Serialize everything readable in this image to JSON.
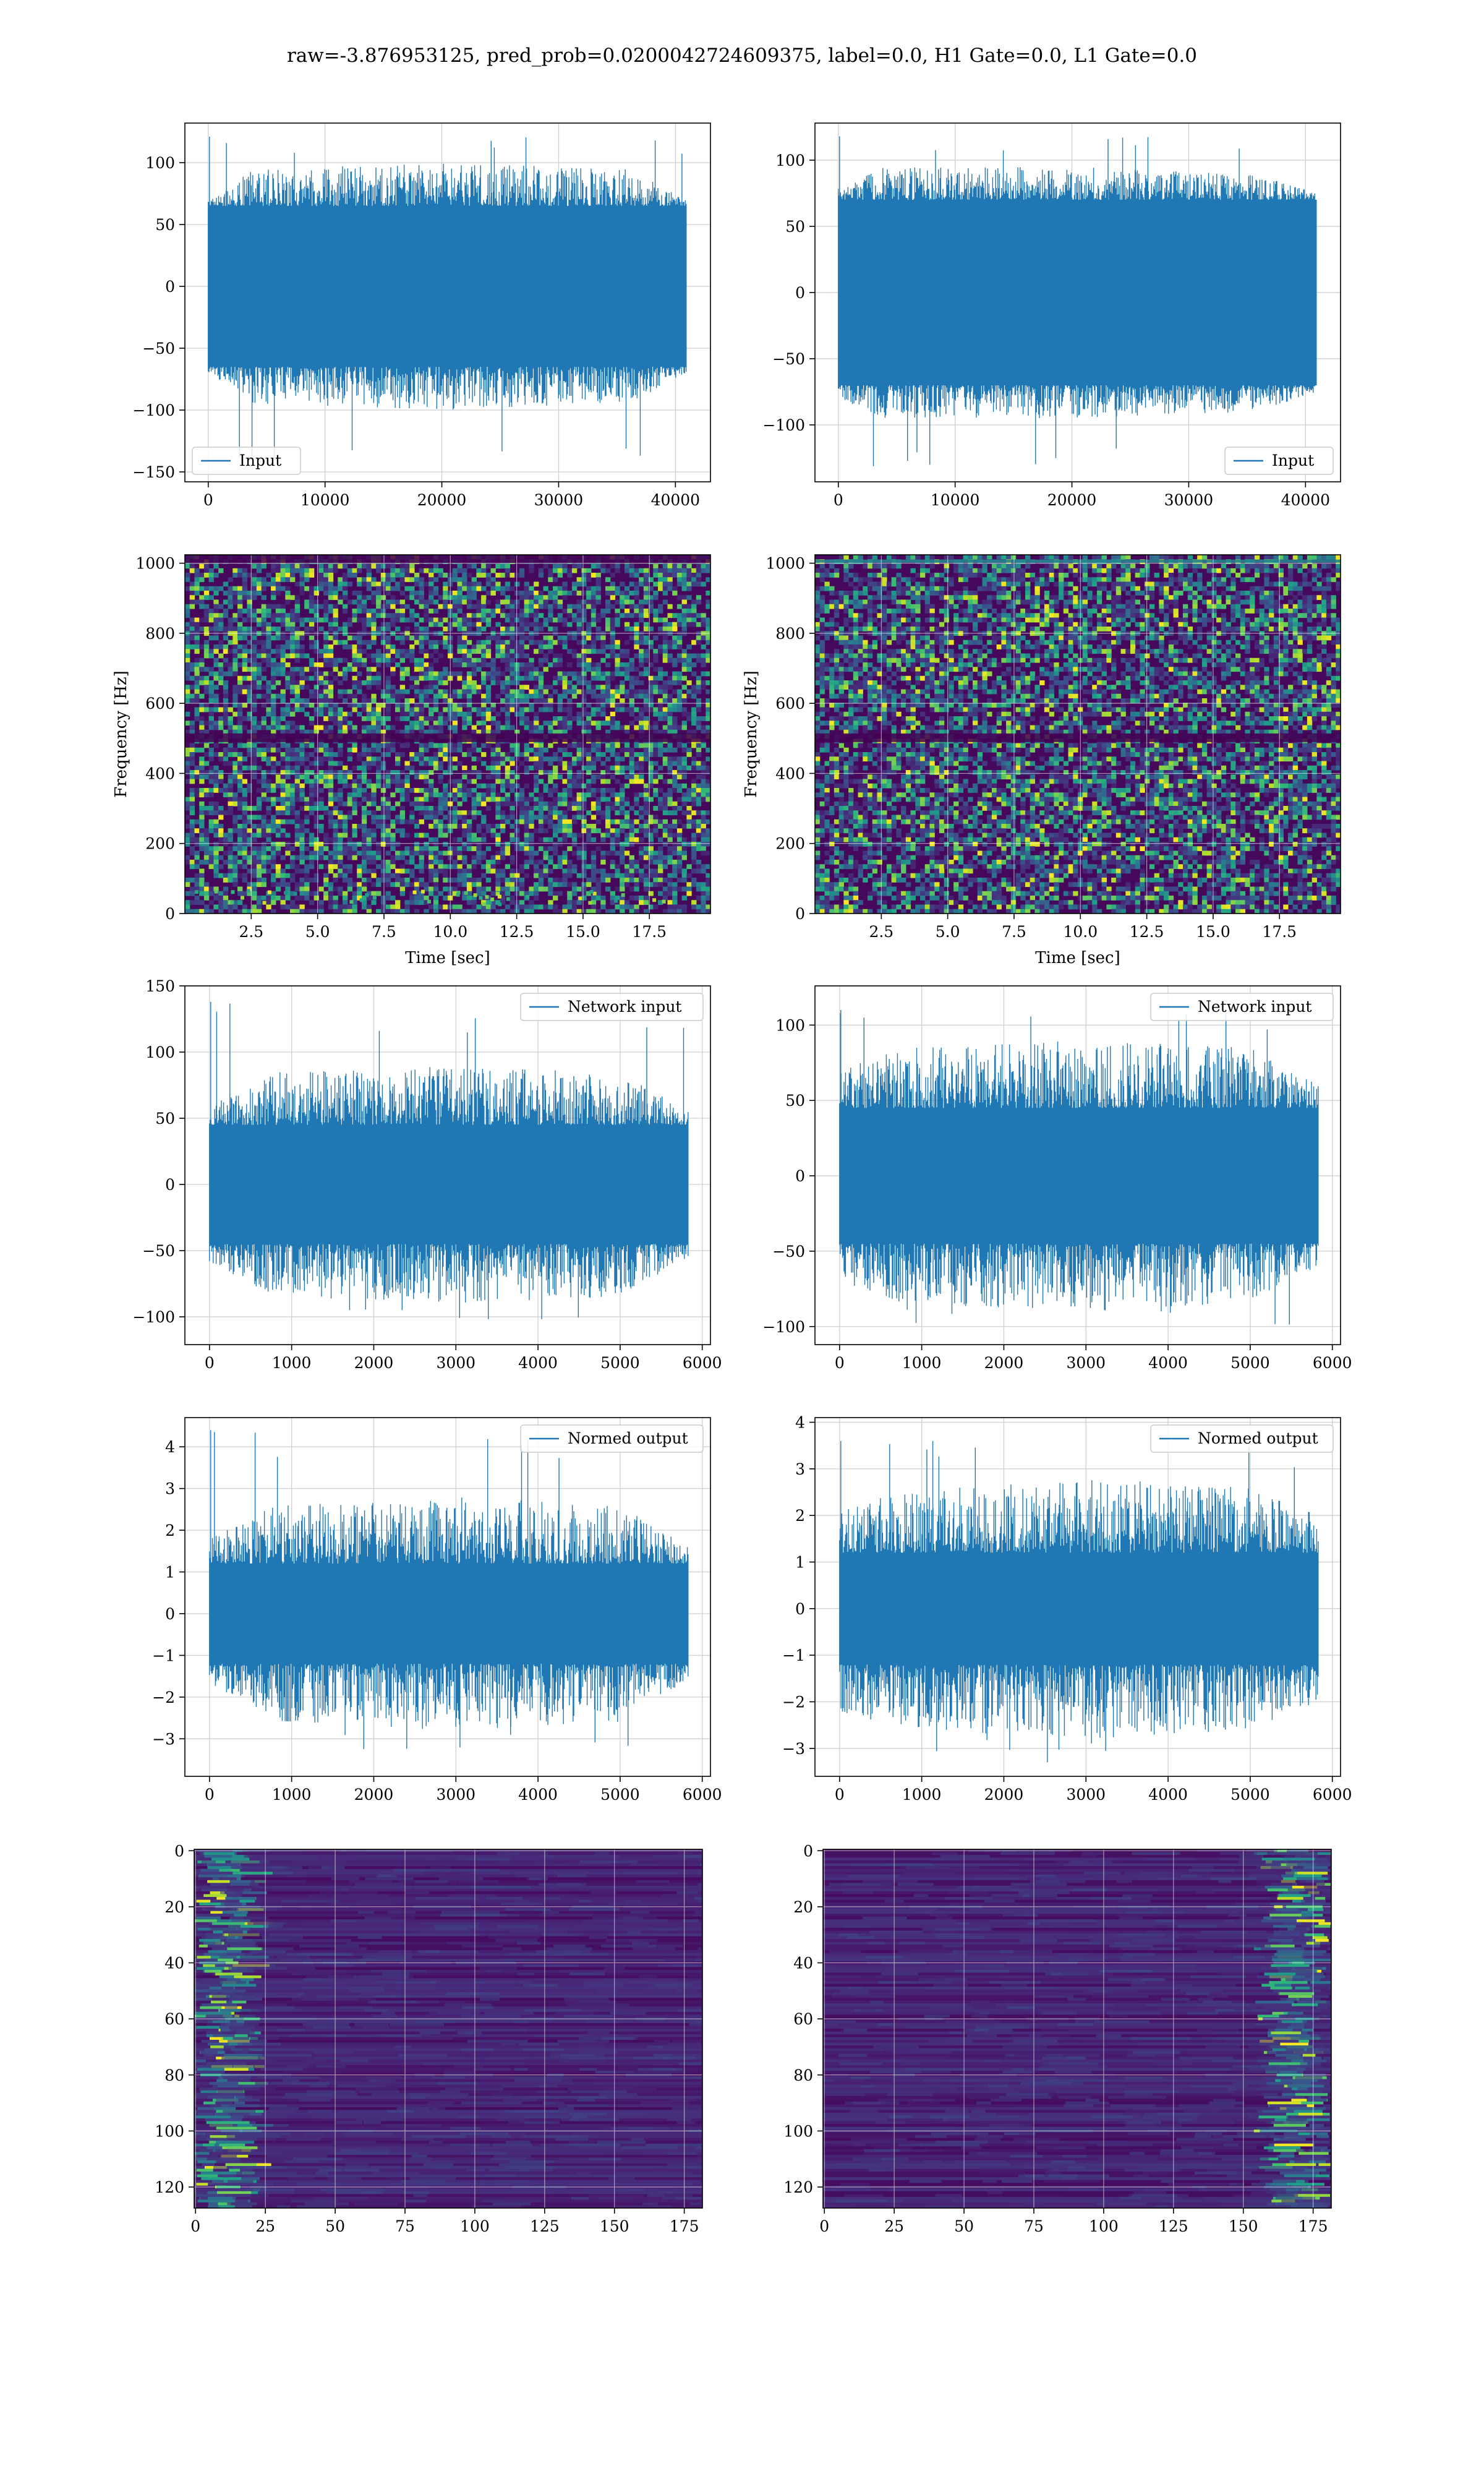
{
  "figure": {
    "title": "raw=-3.876953125, pred_prob=0.0200042724609375, label=0.0, H1 Gate=0.0, L1 Gate=0.0"
  },
  "colors": {
    "line": "#1f77b4",
    "grid": "#cfcfcf",
    "viridis": [
      "#440154",
      "#482878",
      "#3e4989",
      "#31688e",
      "#26828e",
      "#1f9e89",
      "#35b779",
      "#6ece58",
      "#b5de2b",
      "#fde725"
    ]
  },
  "chart_data": [
    {
      "id": "row1-left",
      "type": "line",
      "legend": {
        "label": "Input",
        "loc": "lower left"
      },
      "grid": true,
      "xlim": [
        -2000,
        43000
      ],
      "ylim": [
        -158,
        132
      ],
      "x_ticks": [
        0,
        10000,
        20000,
        30000,
        40000
      ],
      "x_tick_labels": [
        "0",
        "10000",
        "20000",
        "30000",
        "40000"
      ],
      "y_ticks": [
        -150,
        -100,
        -50,
        0,
        50,
        100
      ],
      "y_tick_labels": [
        "−150",
        "−100",
        "−50",
        "0",
        "50",
        "100"
      ],
      "series": [
        {
          "x_range": [
            0,
            40960
          ],
          "band": [
            -65,
            65
          ],
          "extremes": [
            -143,
            121
          ],
          "envelope": [
            [
              0,
              70
            ],
            [
              4000,
              95
            ],
            [
              20000,
              100
            ],
            [
              36000,
              95
            ],
            [
              40960,
              70
            ]
          ]
        }
      ]
    },
    {
      "id": "row1-right",
      "type": "line",
      "legend": {
        "label": "Input",
        "loc": "lower right"
      },
      "grid": true,
      "xlim": [
        -2000,
        43000
      ],
      "ylim": [
        -143,
        128
      ],
      "x_ticks": [
        0,
        10000,
        20000,
        30000,
        40000
      ],
      "x_tick_labels": [
        "0",
        "10000",
        "20000",
        "30000",
        "40000"
      ],
      "y_ticks": [
        -100,
        -50,
        0,
        50,
        100
      ],
      "y_tick_labels": [
        "−100",
        "−50",
        "0",
        "50",
        "100"
      ],
      "series": [
        {
          "x_range": [
            0,
            40960
          ],
          "band": [
            -70,
            70
          ],
          "extremes": [
            -133,
            118
          ],
          "envelope": [
            [
              0,
              80
            ],
            [
              4000,
              95
            ],
            [
              20000,
              95
            ],
            [
              36000,
              90
            ],
            [
              40960,
              75
            ]
          ]
        }
      ]
    },
    {
      "id": "row2-left",
      "type": "heatmap",
      "xlabel": "Time [sec]",
      "ylabel": "Frequency [Hz]",
      "grid": true,
      "xlim": [
        0,
        19.8
      ],
      "ylim": [
        0,
        1024
      ],
      "x_ticks": [
        2.5,
        5.0,
        7.5,
        10.0,
        12.5,
        15.0,
        17.5
      ],
      "x_tick_labels": [
        "2.5",
        "5.0",
        "7.5",
        "10.0",
        "12.5",
        "15.0",
        "17.5"
      ],
      "y_ticks": [
        0,
        200,
        400,
        600,
        800,
        1000
      ],
      "y_tick_labels": [
        "0",
        "200",
        "400",
        "600",
        "800",
        "1000"
      ],
      "features": {
        "dark_bands_hz": [
          500,
          1010
        ],
        "low_freq_bright": true,
        "seed": 11
      }
    },
    {
      "id": "row2-right",
      "type": "heatmap",
      "xlabel": "Time [sec]",
      "ylabel": "Frequency [Hz]",
      "grid": true,
      "xlim": [
        0,
        19.8
      ],
      "ylim": [
        0,
        1024
      ],
      "x_ticks": [
        2.5,
        5.0,
        7.5,
        10.0,
        12.5,
        15.0,
        17.5
      ],
      "x_tick_labels": [
        "2.5",
        "5.0",
        "7.5",
        "10.0",
        "12.5",
        "15.0",
        "17.5"
      ],
      "y_ticks": [
        0,
        200,
        400,
        600,
        800,
        1000
      ],
      "y_tick_labels": [
        "0",
        "200",
        "400",
        "600",
        "800",
        "1000"
      ],
      "features": {
        "dark_bands_hz": [
          500
        ],
        "bright_band_hz": 1005,
        "low_freq_bright": false,
        "seed": 23
      }
    },
    {
      "id": "row3-left",
      "type": "line",
      "legend": {
        "label": "Network input",
        "loc": "upper right"
      },
      "grid": true,
      "xlim": [
        -300,
        6100
      ],
      "ylim": [
        -121,
        150
      ],
      "x_ticks": [
        0,
        1000,
        2000,
        3000,
        4000,
        5000,
        6000
      ],
      "x_tick_labels": [
        "0",
        "1000",
        "2000",
        "3000",
        "4000",
        "5000",
        "6000"
      ],
      "y_ticks": [
        -100,
        -50,
        0,
        50,
        100,
        150
      ],
      "y_tick_labels": [
        "−100",
        "−50",
        "0",
        "50",
        "100",
        "150"
      ],
      "series": [
        {
          "x_range": [
            0,
            5830
          ],
          "band": [
            -45,
            45
          ],
          "extremes": [
            -107,
            138
          ],
          "envelope": [
            [
              0,
              60
            ],
            [
              800,
              85
            ],
            [
              3000,
              90
            ],
            [
              5000,
              85
            ],
            [
              5830,
              55
            ]
          ]
        }
      ]
    },
    {
      "id": "row3-right",
      "type": "line",
      "legend": {
        "label": "Network input",
        "loc": "upper right"
      },
      "grid": true,
      "xlim": [
        -300,
        6100
      ],
      "ylim": [
        -112,
        126
      ],
      "x_ticks": [
        0,
        1000,
        2000,
        3000,
        4000,
        5000,
        6000
      ],
      "x_tick_labels": [
        "0",
        "1000",
        "2000",
        "3000",
        "4000",
        "5000",
        "6000"
      ],
      "y_ticks": [
        -100,
        -50,
        0,
        50,
        100
      ],
      "y_tick_labels": [
        "−100",
        "−50",
        "0",
        "50",
        "100"
      ],
      "series": [
        {
          "x_range": [
            0,
            5830
          ],
          "band": [
            -45,
            45
          ],
          "extremes": [
            -100,
            110
          ],
          "envelope": [
            [
              0,
              70
            ],
            [
              800,
              85
            ],
            [
              3000,
              90
            ],
            [
              5000,
              85
            ],
            [
              5830,
              60
            ]
          ]
        }
      ]
    },
    {
      "id": "row4-left",
      "type": "line",
      "legend": {
        "label": "Normed output",
        "loc": "upper right"
      },
      "grid": true,
      "xlim": [
        -300,
        6100
      ],
      "ylim": [
        -3.9,
        4.7
      ],
      "x_ticks": [
        0,
        1000,
        2000,
        3000,
        4000,
        5000,
        6000
      ],
      "x_tick_labels": [
        "0",
        "1000",
        "2000",
        "3000",
        "4000",
        "5000",
        "6000"
      ],
      "y_ticks": [
        -3,
        -2,
        -1,
        0,
        1,
        2,
        3,
        4
      ],
      "y_tick_labels": [
        "−3",
        "−2",
        "−1",
        "0",
        "1",
        "2",
        "3",
        "4"
      ],
      "series": [
        {
          "x_range": [
            0,
            5830
          ],
          "band": [
            -1.2,
            1.2
          ],
          "extremes": [
            -3.4,
            4.4
          ],
          "envelope": [
            [
              0,
              1.8
            ],
            [
              800,
              2.6
            ],
            [
              3000,
              2.8
            ],
            [
              5000,
              2.6
            ],
            [
              5830,
              1.6
            ]
          ]
        }
      ]
    },
    {
      "id": "row4-right",
      "type": "line",
      "legend": {
        "label": "Normed output",
        "loc": "upper right"
      },
      "grid": true,
      "xlim": [
        -300,
        6100
      ],
      "ylim": [
        -3.6,
        4.1
      ],
      "x_ticks": [
        0,
        1000,
        2000,
        3000,
        4000,
        5000,
        6000
      ],
      "x_tick_labels": [
        "0",
        "1000",
        "2000",
        "3000",
        "4000",
        "5000",
        "6000"
      ],
      "y_ticks": [
        -3,
        -2,
        -1,
        0,
        1,
        2,
        3,
        4
      ],
      "y_tick_labels": [
        "−3",
        "−2",
        "−1",
        "0",
        "1",
        "2",
        "3",
        "4"
      ],
      "series": [
        {
          "x_range": [
            0,
            5830
          ],
          "band": [
            -1.2,
            1.2
          ],
          "extremes": [
            -3.3,
            3.6
          ],
          "envelope": [
            [
              0,
              2.2
            ],
            [
              800,
              2.6
            ],
            [
              3000,
              2.8
            ],
            [
              5000,
              2.6
            ],
            [
              5830,
              2.0
            ]
          ]
        }
      ]
    },
    {
      "id": "row5-left",
      "type": "heatmap",
      "grid": true,
      "xlim": [
        -0.5,
        181.5
      ],
      "ylim": [
        127.5,
        -0.5
      ],
      "x_ticks": [
        0,
        25,
        50,
        75,
        100,
        125,
        150,
        175
      ],
      "x_tick_labels": [
        "0",
        "25",
        "50",
        "75",
        "100",
        "125",
        "150",
        "175"
      ],
      "y_ticks": [
        0,
        20,
        40,
        60,
        80,
        100,
        120
      ],
      "y_tick_labels": [
        "0",
        "20",
        "40",
        "60",
        "80",
        "100",
        "120"
      ],
      "features": {
        "rows": 128,
        "cols": 182,
        "bright_side": "left",
        "seed": 37
      }
    },
    {
      "id": "row5-right",
      "type": "heatmap",
      "grid": true,
      "xlim": [
        -0.5,
        181.5
      ],
      "ylim": [
        127.5,
        -0.5
      ],
      "x_ticks": [
        0,
        25,
        50,
        75,
        100,
        125,
        150,
        175
      ],
      "x_tick_labels": [
        "0",
        "25",
        "50",
        "75",
        "100",
        "125",
        "150",
        "175"
      ],
      "y_ticks": [
        0,
        20,
        40,
        60,
        80,
        100,
        120
      ],
      "y_tick_labels": [
        "0",
        "20",
        "40",
        "60",
        "80",
        "100",
        "120"
      ],
      "features": {
        "rows": 128,
        "cols": 182,
        "bright_side": "right",
        "seed": 53
      }
    }
  ]
}
